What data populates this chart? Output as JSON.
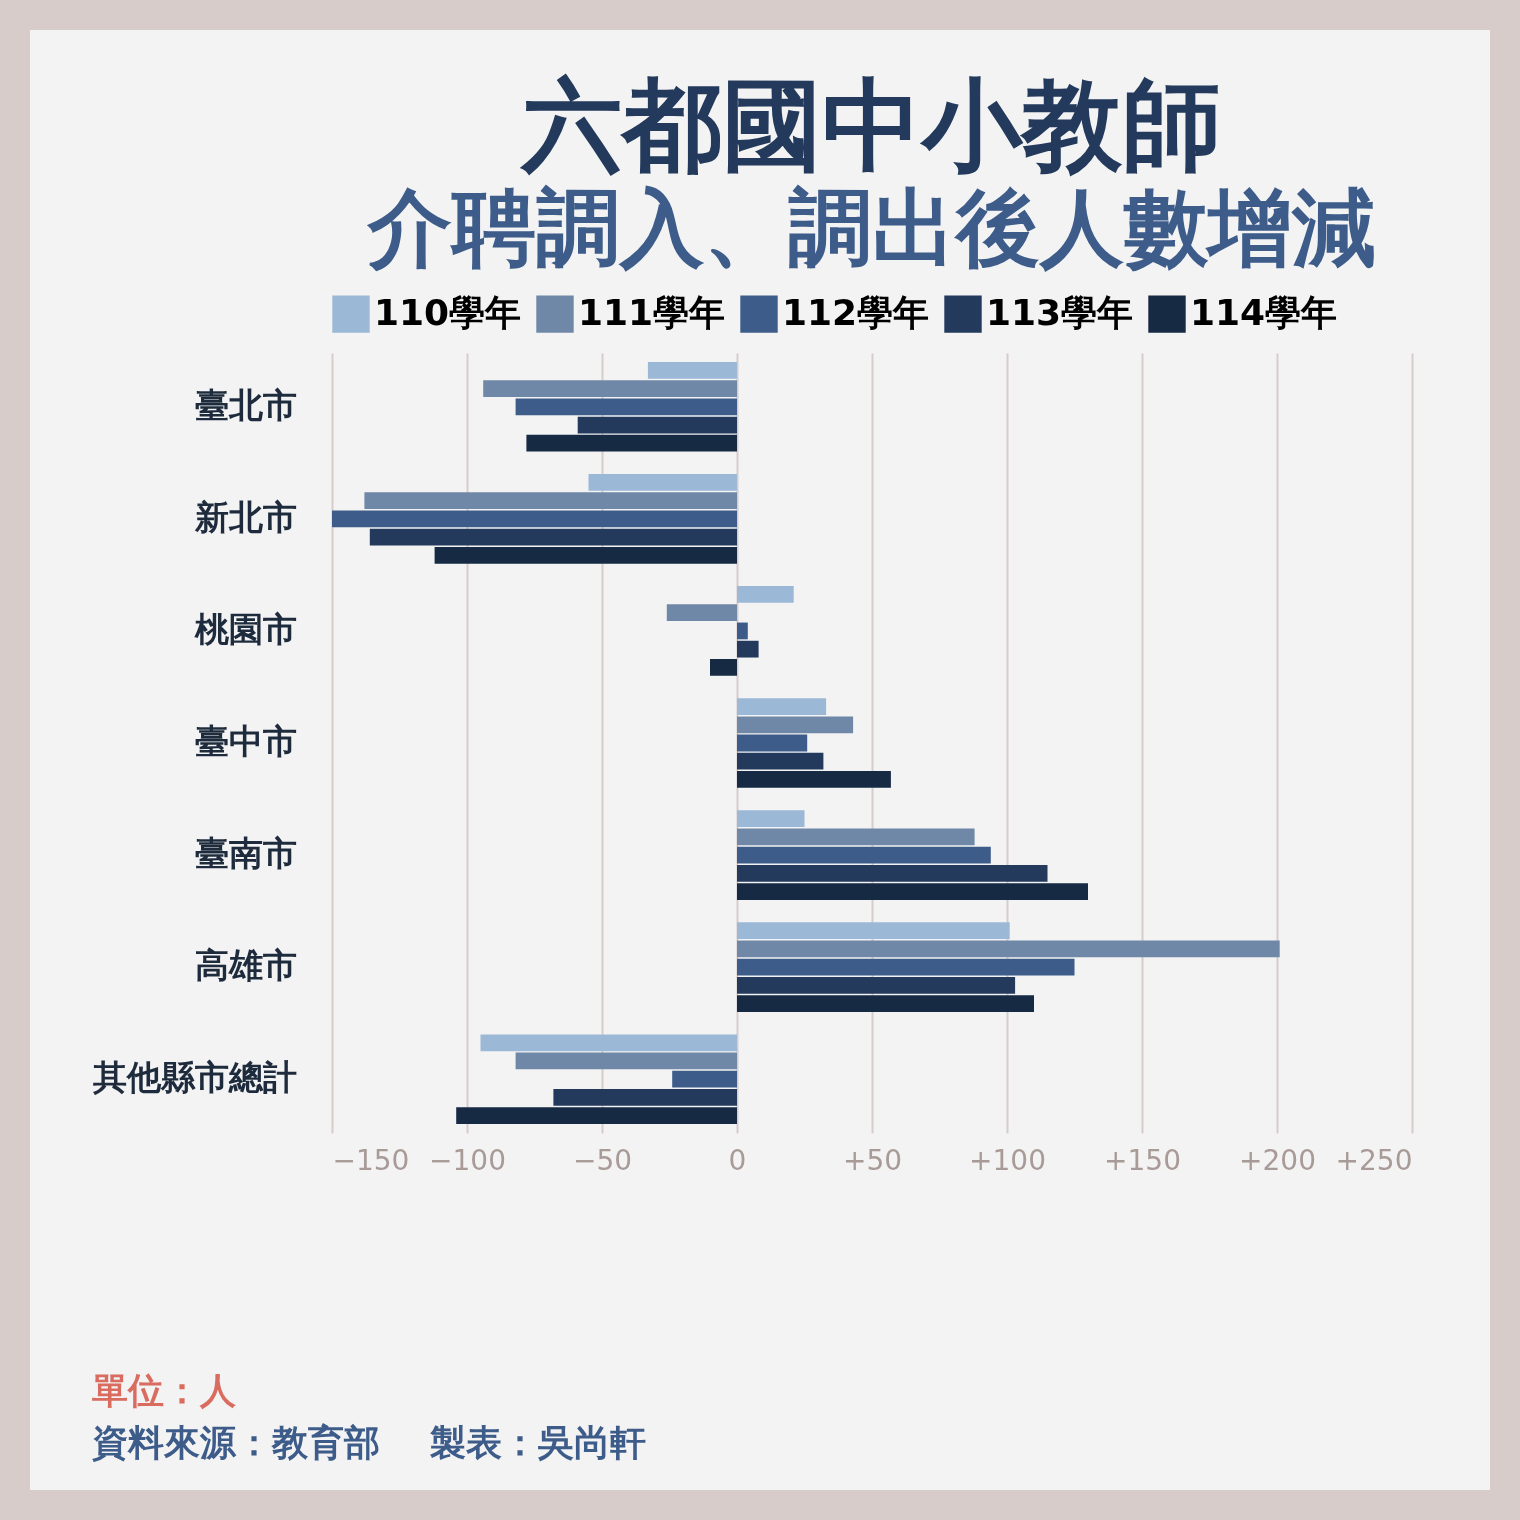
{
  "chart_data": {
    "type": "bar",
    "orientation": "horizontal",
    "title": "六都國中小教師",
    "subtitle": "介聘調入、調出後人數增減",
    "categories": [
      "臺北市",
      "新北市",
      "桃園市",
      "臺中市",
      "臺南市",
      "高雄市",
      "其他縣市總計"
    ],
    "series": [
      {
        "name": "110學年",
        "color": "#9bb8d6",
        "values": [
          -33,
          -55,
          21,
          33,
          25,
          101,
          -95
        ]
      },
      {
        "name": "111學年",
        "color": "#6f88a8",
        "values": [
          -94,
          -138,
          -26,
          43,
          88,
          201,
          -82
        ]
      },
      {
        "name": "112學年",
        "color": "#3d5c8a",
        "values": [
          -82,
          -150,
          4,
          26,
          94,
          125,
          -24
        ]
      },
      {
        "name": "113學年",
        "color": "#233a5c",
        "values": [
          -59,
          -136,
          8,
          32,
          115,
          103,
          -68
        ]
      },
      {
        "name": "114學年",
        "color": "#172a44",
        "values": [
          -78,
          -112,
          -10,
          57,
          130,
          110,
          -104
        ]
      }
    ],
    "xlim": [
      -150,
      250
    ],
    "xticks": [
      -150,
      -100,
      -50,
      0,
      {
        "value": 50,
        "label": "+50"
      },
      {
        "value": 100,
        "label": "+100"
      },
      {
        "value": 150,
        "label": "+150"
      },
      {
        "value": 200,
        "label": "+200"
      },
      {
        "value": 250,
        "label": "+250"
      }
    ],
    "grid": "x",
    "legend": "top",
    "annotations": [
      "單位：人",
      "資料來源：教育部",
      "製表：吳尚軒"
    ]
  }
}
